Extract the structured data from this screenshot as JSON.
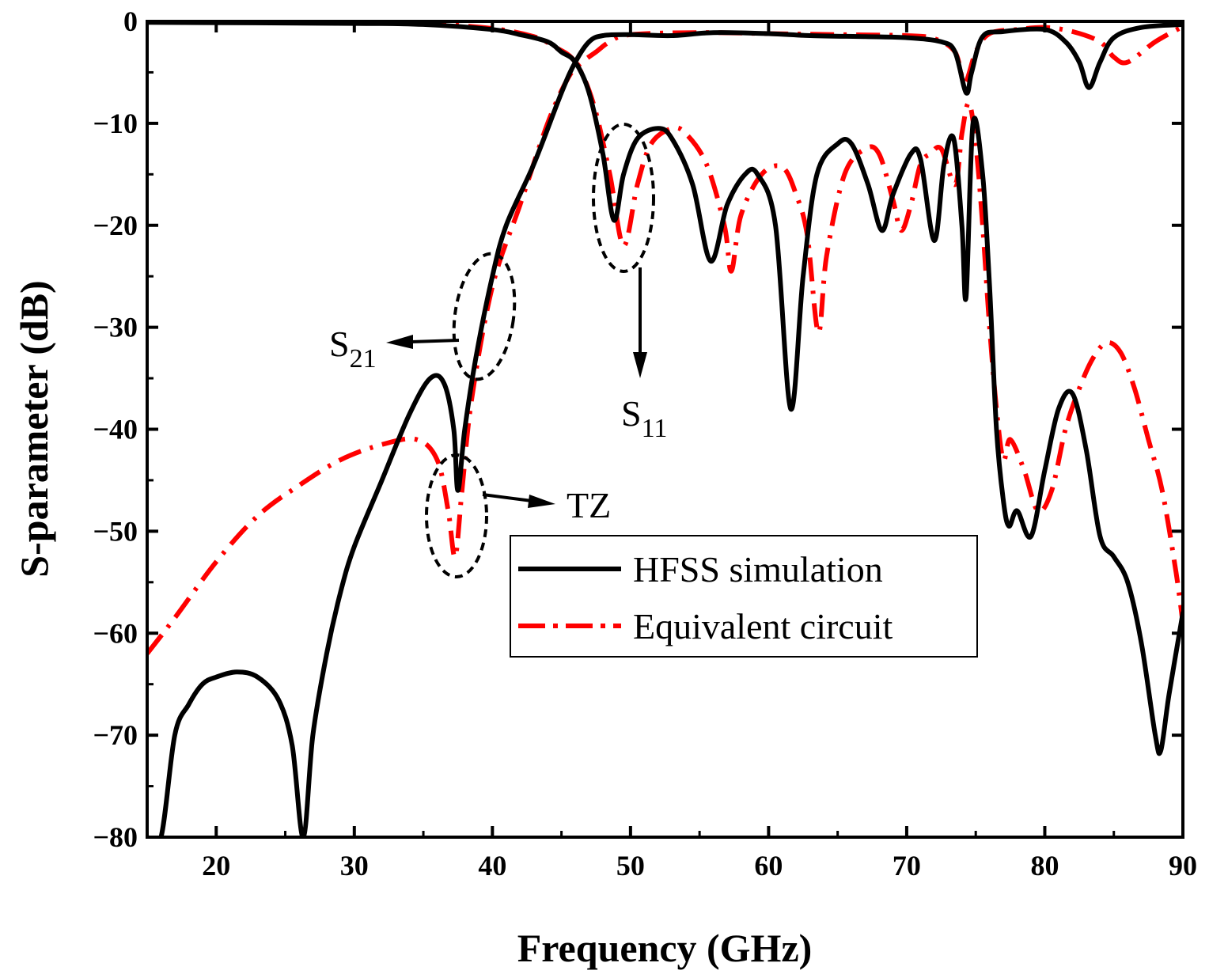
{
  "chart_data": {
    "type": "line",
    "xlabel": "Frequency (GHz)",
    "ylabel": "S-parameter (dB)",
    "xlim": [
      15,
      90
    ],
    "ylim": [
      -80,
      0
    ],
    "xticks": [
      20,
      30,
      40,
      50,
      60,
      70,
      80,
      90
    ],
    "yticks": [
      0,
      -10,
      -20,
      -30,
      -40,
      -50,
      -60,
      -70,
      -80
    ],
    "xtick_labels": [
      "20",
      "30",
      "40",
      "50",
      "60",
      "70",
      "80",
      "90"
    ],
    "ytick_labels": [
      "0",
      "−10",
      "−20",
      "−30",
      "−40",
      "−50",
      "−60",
      "−70",
      "−80"
    ],
    "legend": {
      "position": "center-right",
      "entries": [
        "HFSS simulation",
        "Equivalent circuit"
      ]
    },
    "series": [
      {
        "name": "HFSS simulation S21",
        "style": "solid",
        "color": "#000000",
        "points": [
          [
            15,
            -80
          ],
          [
            16,
            -80
          ],
          [
            17,
            -70
          ],
          [
            18,
            -67
          ],
          [
            19,
            -65
          ],
          [
            20,
            -64.3
          ],
          [
            21.5,
            -63.8
          ],
          [
            23,
            -64.3
          ],
          [
            24.5,
            -66.5
          ],
          [
            25.5,
            -71
          ],
          [
            26.3,
            -80
          ],
          [
            27,
            -70
          ],
          [
            28,
            -62
          ],
          [
            29,
            -56
          ],
          [
            30,
            -51.5
          ],
          [
            32,
            -45
          ],
          [
            34,
            -38.5
          ],
          [
            35.5,
            -35
          ],
          [
            36.5,
            -35.5
          ],
          [
            37.2,
            -40
          ],
          [
            37.5,
            -46
          ],
          [
            38,
            -40
          ],
          [
            38.8,
            -33
          ],
          [
            40,
            -25
          ],
          [
            41,
            -20
          ],
          [
            43,
            -14
          ],
          [
            45,
            -7
          ],
          [
            46,
            -4
          ],
          [
            47,
            -2
          ],
          [
            48,
            -1.4
          ],
          [
            50,
            -1.3
          ],
          [
            53,
            -1.4
          ],
          [
            56,
            -1.1
          ],
          [
            60,
            -1.2
          ],
          [
            63,
            -1.4
          ],
          [
            67,
            -1.5
          ],
          [
            70,
            -1.6
          ],
          [
            72.5,
            -2
          ],
          [
            73.5,
            -3
          ],
          [
            74.3,
            -7
          ],
          [
            74.7,
            -5
          ],
          [
            75.5,
            -1.5
          ],
          [
            77,
            -1
          ],
          [
            80,
            -0.8
          ],
          [
            81.5,
            -2
          ],
          [
            82.5,
            -4
          ],
          [
            83.2,
            -6.5
          ],
          [
            84,
            -4
          ],
          [
            85,
            -1.6
          ],
          [
            87,
            -0.6
          ],
          [
            90,
            -0.3
          ]
        ]
      },
      {
        "name": "HFSS simulation S11",
        "style": "solid",
        "color": "#000000",
        "points": [
          [
            15,
            -0.1
          ],
          [
            30,
            -0.2
          ],
          [
            35,
            -0.3
          ],
          [
            40,
            -0.8
          ],
          [
            42,
            -1.3
          ],
          [
            44,
            -2
          ],
          [
            45,
            -3
          ],
          [
            46,
            -4
          ],
          [
            47,
            -7
          ],
          [
            48,
            -13
          ],
          [
            48.8,
            -19.5
          ],
          [
            49.5,
            -15
          ],
          [
            50.5,
            -11.5
          ],
          [
            52,
            -10.5
          ],
          [
            53,
            -11.5
          ],
          [
            54.5,
            -16
          ],
          [
            55.8,
            -23.5
          ],
          [
            57,
            -18
          ],
          [
            58.3,
            -15
          ],
          [
            59.2,
            -15
          ],
          [
            60.5,
            -20
          ],
          [
            61.6,
            -38
          ],
          [
            62.5,
            -25
          ],
          [
            63.5,
            -15
          ],
          [
            65,
            -12
          ],
          [
            66,
            -12
          ],
          [
            67.2,
            -16
          ],
          [
            68.2,
            -20.5
          ],
          [
            69,
            -17
          ],
          [
            70.3,
            -13
          ],
          [
            71,
            -13.5
          ],
          [
            72,
            -21.5
          ],
          [
            72.7,
            -14
          ],
          [
            73.4,
            -11.5
          ],
          [
            74,
            -20
          ],
          [
            74.3,
            -27
          ],
          [
            74.8,
            -10
          ],
          [
            75.5,
            -15
          ],
          [
            76,
            -26
          ],
          [
            76.5,
            -40
          ],
          [
            77,
            -47
          ],
          [
            77.4,
            -49.5
          ],
          [
            78,
            -48
          ],
          [
            79,
            -50.5
          ],
          [
            80,
            -44
          ],
          [
            81,
            -38
          ],
          [
            82,
            -36.5
          ],
          [
            83,
            -42
          ],
          [
            84,
            -50.5
          ],
          [
            85,
            -52.5
          ],
          [
            86,
            -55
          ],
          [
            87,
            -61
          ],
          [
            88,
            -70
          ],
          [
            88.4,
            -71.5
          ],
          [
            89,
            -66
          ],
          [
            90,
            -58
          ]
        ]
      },
      {
        "name": "Equivalent circuit S21",
        "style": "dashdot",
        "color": "#ff0000",
        "points": [
          [
            15,
            -62
          ],
          [
            17,
            -58.5
          ],
          [
            20,
            -53
          ],
          [
            23,
            -48.5
          ],
          [
            26,
            -45.5
          ],
          [
            29,
            -43
          ],
          [
            32,
            -41.5
          ],
          [
            34.5,
            -41
          ],
          [
            36,
            -43
          ],
          [
            36.8,
            -48
          ],
          [
            37.3,
            -52.5
          ],
          [
            37.8,
            -46
          ],
          [
            38.5,
            -37
          ],
          [
            40,
            -26
          ],
          [
            42,
            -18
          ],
          [
            44,
            -10
          ],
          [
            45.5,
            -5.5
          ],
          [
            46.5,
            -4
          ],
          [
            47.5,
            -3
          ],
          [
            48.5,
            -2
          ],
          [
            50,
            -1.3
          ],
          [
            55,
            -1.1
          ],
          [
            60,
            -1.2
          ],
          [
            65,
            -1.3
          ],
          [
            70,
            -1.4
          ],
          [
            72,
            -1.7
          ],
          [
            73.5,
            -3
          ],
          [
            74.2,
            -6
          ],
          [
            75,
            -3
          ],
          [
            76,
            -1.2
          ],
          [
            78,
            -0.8
          ],
          [
            80,
            -0.6
          ],
          [
            82,
            -1
          ],
          [
            84,
            -2
          ],
          [
            85,
            -3.5
          ],
          [
            86,
            -4
          ],
          [
            88,
            -2
          ],
          [
            90,
            -0.5
          ]
        ]
      },
      {
        "name": "Equivalent circuit S11",
        "style": "dashdot",
        "color": "#ff0000",
        "points": [
          [
            15,
            0
          ],
          [
            30,
            -0.1
          ],
          [
            35,
            -0.2
          ],
          [
            40,
            -0.7
          ],
          [
            43,
            -1.5
          ],
          [
            44.5,
            -2.5
          ],
          [
            46,
            -4
          ],
          [
            47.3,
            -8
          ],
          [
            48.5,
            -15
          ],
          [
            49.5,
            -22
          ],
          [
            50.5,
            -16
          ],
          [
            51.5,
            -12
          ],
          [
            53,
            -10.5
          ],
          [
            54,
            -11
          ],
          [
            55.5,
            -14
          ],
          [
            56.8,
            -20
          ],
          [
            57.3,
            -24.5
          ],
          [
            58,
            -19
          ],
          [
            59.5,
            -15
          ],
          [
            61,
            -14.3
          ],
          [
            62,
            -17
          ],
          [
            62.8,
            -21
          ],
          [
            63.6,
            -30.5
          ],
          [
            64.2,
            -23
          ],
          [
            65.5,
            -15
          ],
          [
            67,
            -12.5
          ],
          [
            68,
            -13
          ],
          [
            69,
            -17.5
          ],
          [
            69.6,
            -20.5
          ],
          [
            70.3,
            -18
          ],
          [
            71,
            -14
          ],
          [
            71.7,
            -13
          ],
          [
            72.5,
            -12.5
          ],
          [
            73.5,
            -16
          ],
          [
            74,
            -11
          ],
          [
            74.5,
            -8
          ],
          [
            75,
            -12
          ],
          [
            75.5,
            -20
          ],
          [
            76,
            -30
          ],
          [
            76.5,
            -38
          ],
          [
            77,
            -43
          ],
          [
            77.5,
            -41
          ],
          [
            78.5,
            -44
          ],
          [
            79.5,
            -48
          ],
          [
            80.5,
            -46
          ],
          [
            81.5,
            -40
          ],
          [
            82.5,
            -36
          ],
          [
            83.5,
            -33
          ],
          [
            84.5,
            -31.5
          ],
          [
            85.5,
            -32.5
          ],
          [
            86.5,
            -36
          ],
          [
            87.5,
            -41
          ],
          [
            88.5,
            -46
          ],
          [
            89.5,
            -54
          ],
          [
            90,
            -59
          ]
        ]
      }
    ],
    "annotations": [
      {
        "label": "S",
        "sub": "21"
      },
      {
        "label": "S",
        "sub": "11"
      },
      {
        "label": "TZ"
      }
    ]
  }
}
